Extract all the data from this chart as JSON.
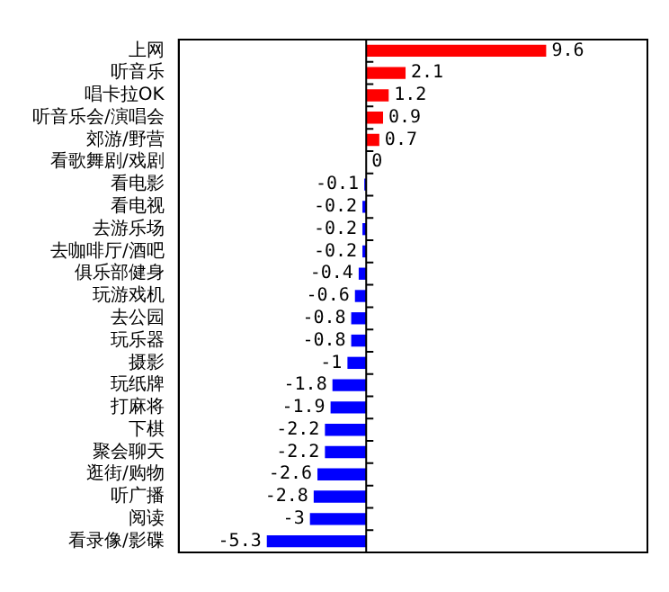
{
  "chart_data": {
    "type": "bar",
    "orientation": "horizontal",
    "data_labels": true,
    "grid": false,
    "legend": false,
    "categories": [
      "上网",
      "听音乐",
      "唱卡拉OK",
      "听音乐会/演唱会",
      "郊游/野营",
      "看歌舞剧/戏剧",
      "看电影",
      "看电视",
      "去游乐场",
      "去咖啡厅/酒吧",
      "俱乐部健身",
      "玩游戏机",
      "去公园",
      "玩乐器",
      "摄影",
      "玩纸牌",
      "打麻将",
      "下棋",
      "聚会聊天",
      "逛街/购物",
      "听广播",
      "阅读",
      "看录像/影碟"
    ],
    "values": [
      9.6,
      2.1,
      1.2,
      0.9,
      0.7,
      0,
      -0.1,
      -0.2,
      -0.2,
      -0.2,
      -0.4,
      -0.6,
      -0.8,
      -0.8,
      -1,
      -1.8,
      -1.9,
      -2.2,
      -2.2,
      -2.6,
      -2.8,
      -3,
      -5.3
    ],
    "colors": [
      "#ff0000",
      "#ff0000",
      "#ff0000",
      "#ff0000",
      "#ff0000",
      "#ff0000",
      "#0000ff",
      "#0000ff",
      "#0000ff",
      "#0000ff",
      "#0000ff",
      "#0000ff",
      "#0000ff",
      "#0000ff",
      "#0000ff",
      "#0000ff",
      "#0000ff",
      "#0000ff",
      "#0000ff",
      "#0000ff",
      "#0000ff",
      "#0000ff",
      "#0000ff"
    ]
  }
}
